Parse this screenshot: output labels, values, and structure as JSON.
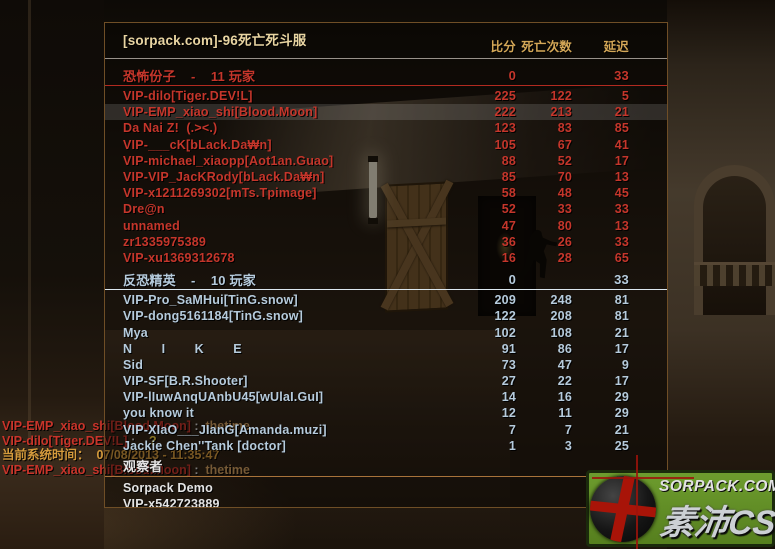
{
  "window": {
    "title": "[sorpack.com]-96死亡死斗服"
  },
  "columns": {
    "score": "比分",
    "deaths": "死亡次数",
    "ping": "延迟"
  },
  "teams": [
    {
      "name": "恐怖份子",
      "label": "恐怖份子    -    11 玩家",
      "count": "11 玩家",
      "score": "0",
      "ping": "33",
      "color": "#c5362b",
      "players": [
        {
          "name": "VIP-dilo[Tiger.DEV!L]",
          "score": "225",
          "deaths": "122",
          "ping": "5"
        },
        {
          "name": "VIP-EMP_xiao_shi[Blood.Moon]",
          "score": "222",
          "deaths": "213",
          "ping": "21",
          "highlight": true
        },
        {
          "name": "Da Nai Z!  (.><.)",
          "score": "123",
          "deaths": "83",
          "ping": "85"
        },
        {
          "name": "VIP-___cK[bLack.Da₩n]",
          "score": "105",
          "deaths": "67",
          "ping": "41"
        },
        {
          "name": "VIP-michael_xiaopp[Aot1an.Guao]",
          "score": "88",
          "deaths": "52",
          "ping": "17"
        },
        {
          "name": "VIP-VIP_JacKRody[bLack.Da₩n]",
          "score": "85",
          "deaths": "70",
          "ping": "13"
        },
        {
          "name": "VIP-x1211269302[mTs.Tpimage]",
          "score": "58",
          "deaths": "48",
          "ping": "45"
        },
        {
          "name": "Dre@n",
          "score": "52",
          "deaths": "33",
          "ping": "33"
        },
        {
          "name": "unnamed",
          "score": "47",
          "deaths": "80",
          "ping": "13"
        },
        {
          "name": "zr1335975389",
          "score": "36",
          "deaths": "26",
          "ping": "33"
        },
        {
          "name": "VIP-xu1369312678",
          "score": "16",
          "deaths": "28",
          "ping": "65"
        }
      ]
    },
    {
      "name": "反恐精英",
      "label": "反恐精英    -    10 玩家",
      "count": "10 玩家",
      "score": "0",
      "ping": "33",
      "color": "#b6cbdc",
      "players": [
        {
          "name": "VIP-Pro_SaMHui[TinG.snow]",
          "score": "209",
          "deaths": "248",
          "ping": "81"
        },
        {
          "name": "VIP-dong5161184[TinG.snow]",
          "score": "122",
          "deaths": "208",
          "ping": "81"
        },
        {
          "name": "Mya",
          "score": "102",
          "deaths": "108",
          "ping": "21"
        },
        {
          "name": "N        I        K        E",
          "score": "91",
          "deaths": "86",
          "ping": "17"
        },
        {
          "name": "Sid",
          "score": "73",
          "deaths": "47",
          "ping": "9"
        },
        {
          "name": "VIP-SF[B.R.Shooter]",
          "score": "27",
          "deaths": "22",
          "ping": "17"
        },
        {
          "name": "VIP-lIuwAnqUAnbU45[wUlaI.GuI]",
          "score": "14",
          "deaths": "16",
          "ping": "29"
        },
        {
          "name": "you know it",
          "score": "12",
          "deaths": "11",
          "ping": "29"
        },
        {
          "name": "VIP-XIaO___JIanG[Amanda.muzi]",
          "score": "7",
          "deaths": "7",
          "ping": "21"
        },
        {
          "name": "Jackie Chen''Tank [doctor]",
          "score": "1",
          "deaths": "3",
          "ping": "25"
        }
      ]
    }
  ],
  "spectators": {
    "title": "观察者",
    "players": [
      {
        "name": "Sorpack Demo"
      },
      {
        "name": "VIP-x542723889"
      }
    ]
  },
  "chat": {
    "lines": [
      [
        {
          "text": "VIP-EMP_xiao_shi[Blood.Moon]",
          "cls": "t-name"
        },
        {
          "text": " :  ",
          "cls": "sep"
        },
        {
          "text": "thetime",
          "cls": "msg"
        }
      ],
      [
        {
          "text": "VIP-dilo[Tiger.DEV!L]",
          "cls": "t-name"
        },
        {
          "text": " :    ",
          "cls": "sep"
        },
        {
          "text": "?",
          "cls": "q"
        }
      ],
      [
        {
          "text": "当前系统时间：  07/08/2013 - 11:35:47",
          "cls": "sys"
        }
      ],
      [
        {
          "text": "VIP-EMP_xiao_shi[Blood.Moon]",
          "cls": "t-name"
        },
        {
          "text": " :  ",
          "cls": "sep"
        },
        {
          "text": "thetime",
          "cls": "msg"
        }
      ]
    ]
  },
  "watermark": {
    "site": "SORPACK.COM",
    "brand": "素沛CS"
  },
  "colors": {
    "terrorist_red": "#c5362b",
    "ct_blue": "#b6cbdc",
    "title_gold": "#e9d5a2",
    "header_gold": "#d4a757",
    "spectator_white": "#e4e4e4",
    "panel_border": "#6f4e26",
    "logo_green": "#6d9c2e",
    "crosshair_red": "#9e130a"
  }
}
